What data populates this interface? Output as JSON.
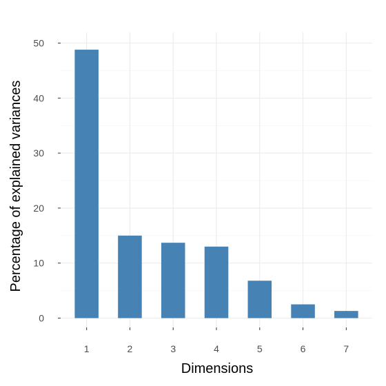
{
  "chart_data": {
    "type": "bar",
    "title": "",
    "xlabel": "Dimensions",
    "ylabel": "Percentage of explained variances",
    "categories": [
      "1",
      "2",
      "3",
      "4",
      "5",
      "6",
      "7"
    ],
    "values": [
      48.8,
      15.0,
      13.7,
      13.0,
      6.8,
      2.5,
      1.3
    ],
    "ylim": [
      0,
      51
    ],
    "yticks": [
      "0",
      "10",
      "20",
      "30",
      "40",
      "50"
    ],
    "grid": true,
    "bar_color": "#4682b4",
    "legend": "none"
  }
}
